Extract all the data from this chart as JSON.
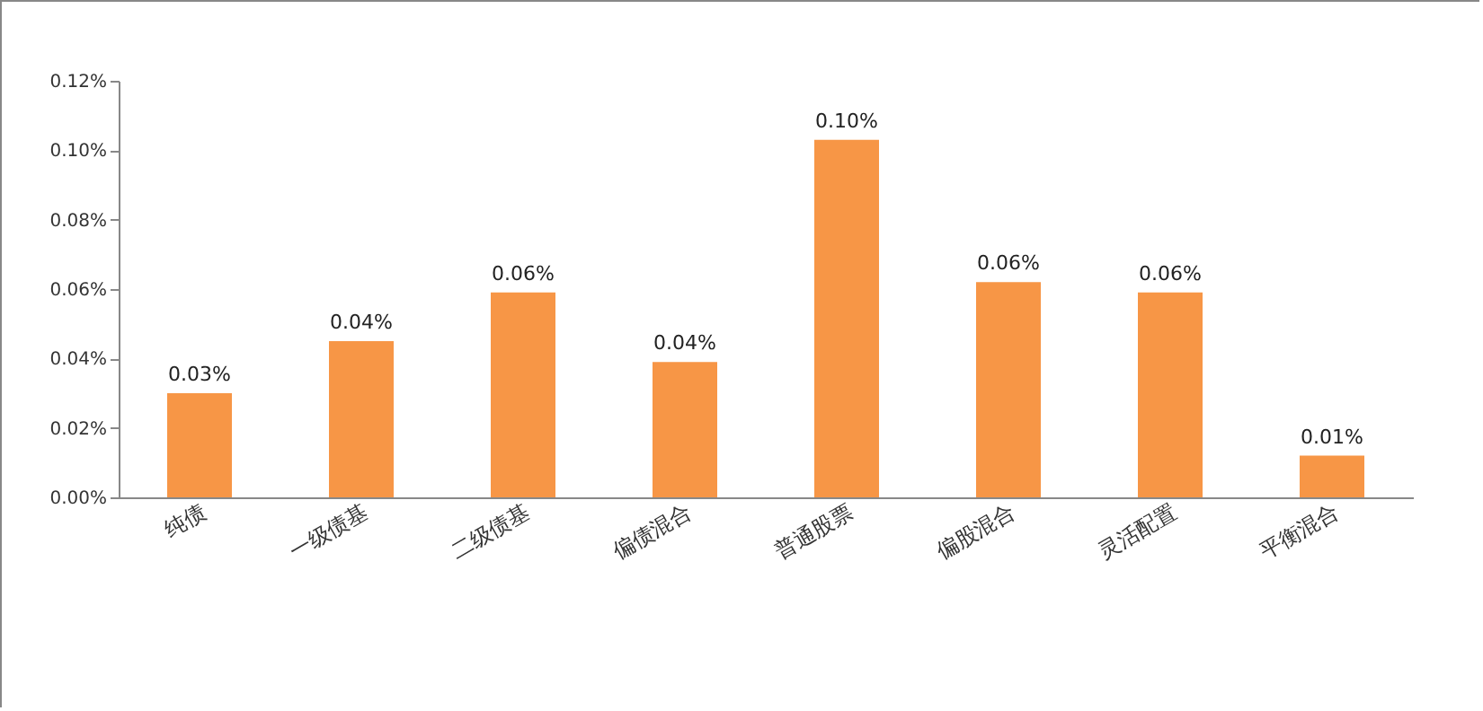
{
  "chart_data": {
    "type": "bar",
    "categories": [
      "纯债",
      "一级债基",
      "二级债基",
      "偏债混合",
      "普通股票",
      "偏股混合",
      "灵活配置",
      "平衡混合"
    ],
    "values": [
      0.03,
      0.045,
      0.059,
      0.039,
      0.103,
      0.062,
      0.059,
      0.012
    ],
    "value_labels": [
      "0.03%",
      "0.04%",
      "0.06%",
      "0.04%",
      "0.10%",
      "0.06%",
      "0.06%",
      "0.01%"
    ],
    "color": "#f79646",
    "ylim": [
      0,
      0.12
    ],
    "yticks": [
      {
        "value": 0,
        "label": "0.00%"
      },
      {
        "value": 0.02,
        "label": "0.02%"
      },
      {
        "value": 0.04,
        "label": "0.04%"
      },
      {
        "value": 0.06,
        "label": "0.06%"
      },
      {
        "value": 0.08,
        "label": "0.08%"
      },
      {
        "value": 0.1,
        "label": "0.10%"
      },
      {
        "value": 0.12,
        "label": "0.12%"
      }
    ],
    "grid": false
  }
}
